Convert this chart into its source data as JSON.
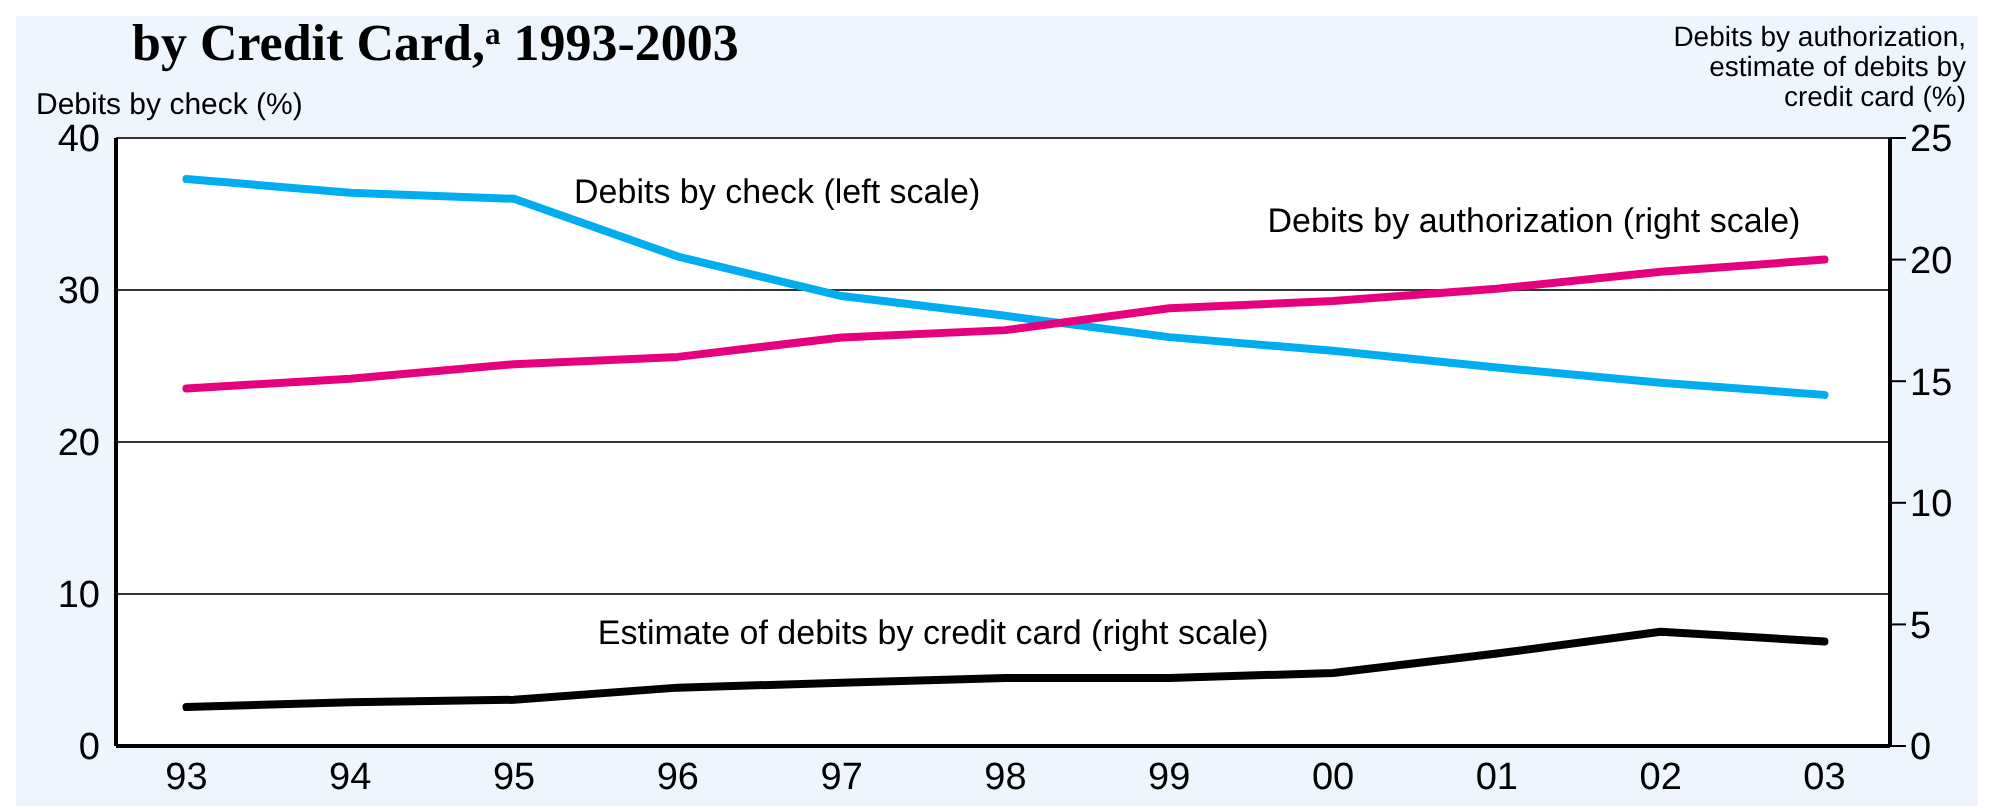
{
  "chart_data": {
    "type": "line",
    "title": "by Credit Card,$^{a}$ 1993-2003",
    "ylabel": "Debits by check (%)",
    "y2label": "Debits by authorization, estimate of debits by credit card (%)",
    "categories": [
      "93",
      "94",
      "95",
      "96",
      "97",
      "98",
      "99",
      "00",
      "01",
      "02",
      "03"
    ],
    "series": [
      {
        "name": "Debits by check (left scale)",
        "color": "#00aeef",
        "values": [
          37.3,
          36.4,
          36.0,
          32.2,
          29.6,
          28.3,
          26.9,
          26.0,
          24.9,
          23.9,
          23.1
        ]
      },
      {
        "name": "Debits by authorization (right scale)",
        "color": "#e6007e",
        "axis": "y2",
        "values": [
          14.7,
          15.1,
          15.7,
          16.0,
          16.8,
          17.1,
          18.0,
          18.3,
          18.8,
          19.5,
          20.0
        ]
      },
      {
        "name": "Estimate of debits by credit card (right scale)",
        "color": "#000000",
        "axis": "y2",
        "values": [
          1.6,
          1.8,
          1.9,
          2.4,
          2.6,
          2.8,
          2.8,
          3.0,
          3.8,
          4.7,
          4.3
        ]
      }
    ],
    "ylim": [
      0,
      40
    ],
    "yticks": [
      0,
      10,
      20,
      30,
      40
    ],
    "y2lim": [
      0,
      25
    ],
    "y2ticks": [
      0,
      5,
      10,
      15,
      20,
      25
    ],
    "grid": "y",
    "legend": false,
    "marker": "none",
    "line_style": "solid"
  }
}
